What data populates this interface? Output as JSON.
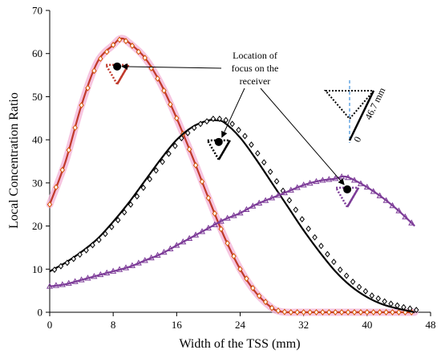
{
  "chart_data": {
    "type": "line",
    "xlabel": "Width of the TSS (mm)",
    "ylabel": "Local Concentration Ratio",
    "xlim": [
      0,
      48
    ],
    "ylim": [
      0,
      70
    ],
    "xticks": [
      0,
      8,
      16,
      24,
      32,
      40,
      48
    ],
    "yticks": [
      0,
      10,
      20,
      30,
      40,
      50,
      60,
      70
    ],
    "grid": false,
    "legend": "none",
    "annotation": {
      "text_lines": [
        "Location of",
        "focus on the",
        "receiver"
      ]
    },
    "inset": {
      "dimension_label": "46.7 mm",
      "zero_label": "0"
    },
    "series": [
      {
        "color": "#c0392b",
        "marker_color": "#d35400",
        "marker": "diamond",
        "halo": "#f4b6d8",
        "x": [
          0,
          2,
          4,
          6,
          8,
          9,
          10,
          12,
          14,
          16,
          18,
          20,
          22,
          24,
          26,
          28,
          29,
          30,
          32,
          34,
          36,
          38,
          40,
          42,
          44,
          46
        ],
        "y": [
          25,
          35,
          48,
          58,
          62,
          63.5,
          62.5,
          59,
          53,
          45,
          36,
          26.5,
          17.5,
          10,
          4.5,
          1,
          0.2,
          0,
          0,
          0,
          0,
          0,
          0,
          0,
          0,
          0
        ]
      },
      {
        "color": "#000000",
        "marker_color": "#000000",
        "marker": "diamond",
        "x": [
          0,
          2,
          4,
          6,
          8,
          10,
          12,
          14,
          16,
          18,
          20,
          21,
          22,
          24,
          26,
          28,
          30,
          32,
          34,
          36,
          38,
          40,
          42,
          44,
          46
        ],
        "y": [
          9.5,
          11.5,
          14,
          17,
          21,
          25.5,
          30.5,
          35.5,
          40,
          43,
          44.5,
          44.5,
          44,
          40.5,
          35.5,
          30,
          24.5,
          19,
          14,
          9.5,
          6,
          3.5,
          1.8,
          0.8,
          0
        ]
      },
      {
        "color": "#7d3c98",
        "marker_color": "#7d3c98",
        "marker": "triangle",
        "x": [
          0,
          2,
          4,
          6,
          8,
          10,
          12,
          14,
          16,
          18,
          20,
          22,
          24,
          26,
          28,
          30,
          32,
          34,
          36,
          37,
          38,
          40,
          42,
          44,
          46
        ],
        "y": [
          6,
          6.5,
          7.5,
          8.5,
          9.5,
          10.5,
          12,
          13.5,
          15.5,
          17.5,
          19.5,
          21.5,
          23,
          25,
          26.5,
          28,
          29.5,
          30.5,
          31,
          31.5,
          31,
          29,
          26.5,
          23.5,
          20
        ]
      }
    ],
    "focus_points": [
      {
        "x": 8.5,
        "y": 57,
        "color": "#c0392b"
      },
      {
        "x": 21.3,
        "y": 39.5,
        "color": "#000000"
      },
      {
        "x": 37.5,
        "y": 28.5,
        "color": "#7d3c98"
      }
    ]
  }
}
